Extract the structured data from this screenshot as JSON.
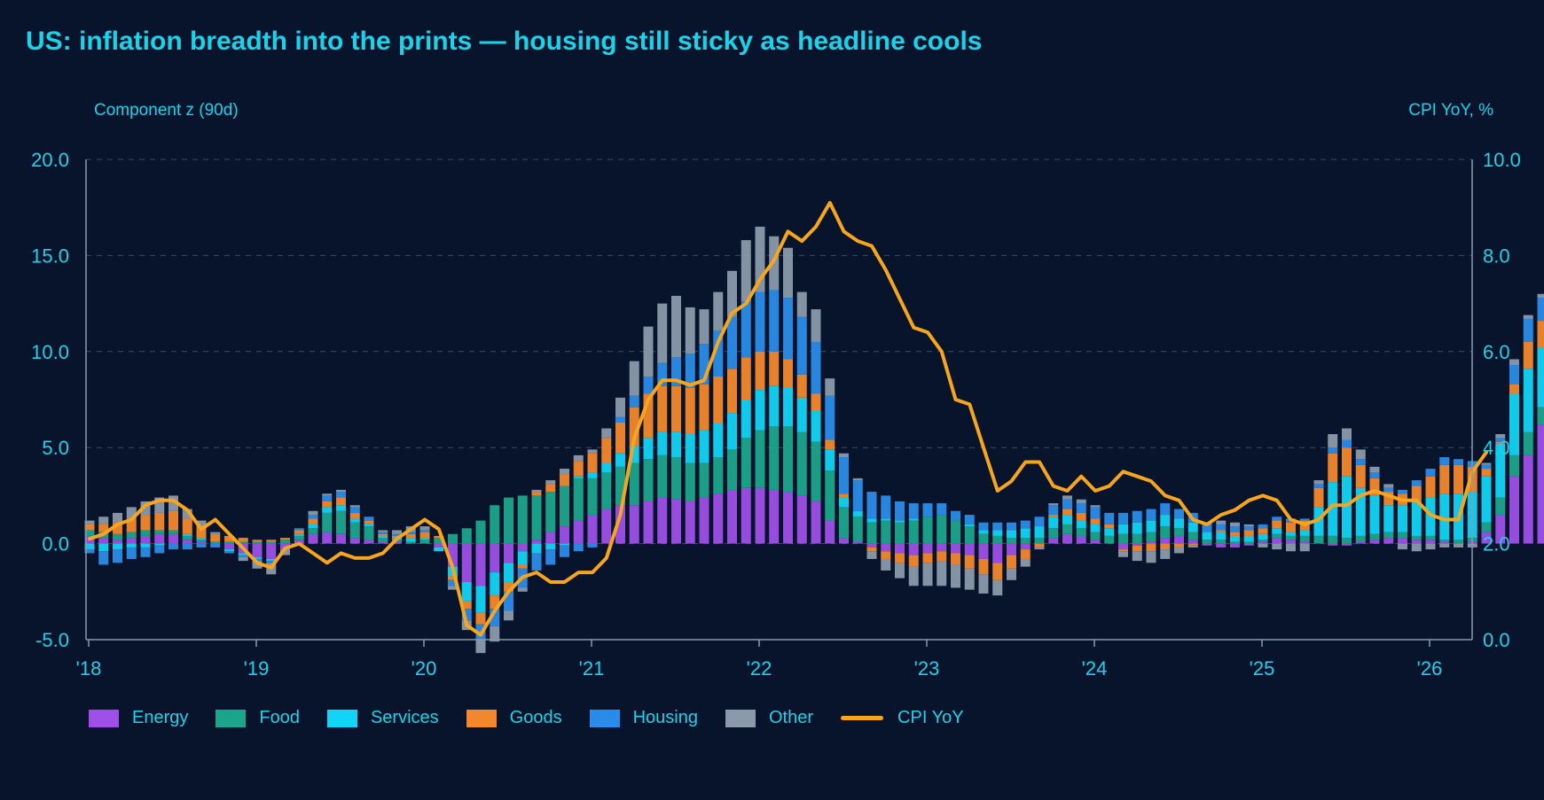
{
  "chart_data": {
    "type": "bar",
    "title": "US: inflation breadth into the prints — housing still sticky as headline cools",
    "ylabel": "Component z (90d)",
    "y2label": "CPI YoY, %",
    "ylim": [
      -5,
      20
    ],
    "y2lim": [
      0,
      10
    ],
    "yticks": [
      "20.0",
      "15.0",
      "10.0",
      "5.0",
      "0.0",
      "-5.0"
    ],
    "y2ticks": [
      "10.0",
      "8.0",
      "6.0",
      "4.0",
      "2.0",
      "0.0"
    ],
    "xticks": [
      "'18",
      "'19",
      "'20",
      "'21",
      "'22",
      "'23",
      "'24",
      "'25",
      "'26"
    ],
    "x_start": "2018-01",
    "x_step": "1 month",
    "stacked": true,
    "grid": true,
    "legend_position": "bottom-left",
    "series": [
      {
        "name": "Energy",
        "color": "#9e4fe6",
        "values": [
          0.4,
          0.3,
          0.2,
          0.3,
          0.4,
          0.5,
          0.5,
          0.2,
          0.1,
          0.0,
          -0.3,
          -0.5,
          -0.7,
          -0.8,
          -0.3,
          0.2,
          0.5,
          0.6,
          0.5,
          0.3,
          0.2,
          0.1,
          0.1,
          0.0,
          0.0,
          -0.2,
          -1.2,
          -2.0,
          -2.2,
          -1.5,
          -1.0,
          -0.4,
          0.2,
          0.6,
          0.9,
          1.2,
          1.5,
          1.8,
          2.0,
          2.0,
          2.2,
          2.4,
          2.3,
          2.2,
          2.4,
          2.6,
          2.8,
          2.9,
          2.9,
          2.8,
          2.7,
          2.5,
          2.2,
          1.2,
          0.3,
          0.1,
          -0.2,
          -0.4,
          -0.5,
          -0.6,
          -0.5,
          -0.4,
          -0.5,
          -0.6,
          -0.8,
          -1.0,
          -0.6,
          -0.3,
          0.0,
          0.3,
          0.5,
          0.4,
          0.2,
          0.0,
          -0.3,
          -0.1,
          0.1,
          0.3,
          0.4,
          0.2,
          -0.1,
          -0.2,
          -0.2,
          -0.1,
          0.1,
          0.3,
          0.2,
          0.1,
          0.0,
          -0.1,
          -0.1,
          0.1,
          0.2,
          0.3,
          0.3,
          0.2,
          0.2,
          0.1,
          0.0,
          0.1,
          0.6,
          1.5,
          3.5,
          4.6,
          6.2
        ]
      },
      {
        "name": "Food",
        "color": "#1ba58c",
        "values": [
          0.3,
          0.3,
          0.3,
          0.3,
          0.3,
          0.2,
          0.2,
          0.2,
          0.1,
          0.1,
          0.1,
          0.1,
          0.1,
          0.1,
          0.2,
          0.2,
          0.3,
          1.0,
          1.2,
          0.8,
          0.7,
          0.2,
          0.1,
          0.1,
          0.2,
          0.3,
          0.5,
          0.8,
          1.2,
          2.0,
          2.4,
          2.5,
          2.3,
          2.1,
          2.1,
          2.2,
          1.9,
          1.9,
          2.0,
          2.2,
          2.2,
          2.2,
          2.2,
          2.0,
          1.8,
          1.9,
          2.1,
          2.6,
          3.0,
          3.3,
          3.4,
          3.3,
          3.1,
          2.6,
          1.6,
          1.3,
          1.1,
          1.2,
          1.1,
          1.2,
          1.4,
          1.5,
          1.2,
          0.9,
          0.5,
          0.4,
          0.3,
          0.3,
          0.3,
          0.5,
          0.5,
          0.4,
          0.4,
          0.4,
          0.5,
          0.5,
          0.5,
          0.6,
          0.4,
          0.4,
          0.2,
          0.2,
          0.1,
          0.1,
          0.1,
          0.2,
          0.2,
          0.3,
          0.4,
          0.4,
          0.3,
          0.3,
          0.3,
          0.3,
          0.3,
          0.2,
          0.2,
          0.1,
          0.2,
          0.2,
          0.5,
          0.9,
          1.1,
          1.2,
          0.9
        ]
      },
      {
        "name": "Services",
        "color": "#12d4f4",
        "values": [
          -0.3,
          -0.4,
          -0.3,
          -0.2,
          -0.2,
          -0.1,
          0.0,
          0.1,
          0.1,
          0.0,
          -0.1,
          -0.1,
          -0.1,
          -0.1,
          0.0,
          0.1,
          0.2,
          0.3,
          0.3,
          0.2,
          0.1,
          0.1,
          0.1,
          0.2,
          0.1,
          -0.2,
          -0.5,
          -1.0,
          -1.4,
          -1.2,
          -1.0,
          -0.7,
          -0.5,
          -0.3,
          -0.1,
          0.1,
          0.3,
          0.5,
          0.7,
          0.9,
          1.1,
          1.2,
          1.3,
          1.5,
          1.7,
          1.8,
          1.9,
          2.0,
          2.1,
          2.1,
          2.0,
          1.8,
          1.6,
          1.1,
          0.5,
          0.3,
          0.2,
          0.1,
          0.1,
          0.1,
          0.0,
          0.0,
          0.0,
          0.1,
          0.2,
          0.3,
          0.4,
          0.5,
          0.6,
          0.6,
          0.5,
          0.4,
          0.4,
          0.4,
          0.5,
          0.6,
          0.6,
          0.6,
          0.5,
          0.5,
          0.4,
          0.4,
          0.3,
          0.3,
          0.3,
          0.3,
          0.2,
          0.3,
          1.5,
          2.8,
          3.2,
          2.5,
          2.0,
          1.4,
          1.4,
          1.8,
          2.0,
          2.4,
          2.4,
          2.4,
          2.4,
          2.8,
          3.2,
          3.3,
          3.1
        ]
      },
      {
        "name": "Goods",
        "color": "#f4872c",
        "values": [
          0.3,
          0.4,
          0.6,
          0.7,
          0.8,
          0.9,
          1.0,
          0.8,
          0.6,
          0.4,
          0.3,
          0.2,
          0.1,
          0.1,
          0.1,
          0.2,
          0.3,
          0.3,
          0.4,
          0.3,
          0.2,
          0.1,
          0.1,
          0.2,
          0.3,
          0.1,
          -0.2,
          -0.4,
          -0.6,
          -0.7,
          -0.5,
          -0.2,
          0.2,
          0.4,
          0.6,
          0.8,
          1.0,
          1.3,
          1.6,
          2.0,
          2.3,
          2.4,
          2.4,
          2.4,
          2.4,
          2.4,
          2.3,
          2.2,
          2.0,
          1.8,
          1.5,
          1.2,
          0.9,
          0.5,
          0.2,
          0.0,
          -0.2,
          -0.4,
          -0.5,
          -0.6,
          -0.5,
          -0.5,
          -0.6,
          -0.7,
          -0.8,
          -0.9,
          -0.7,
          -0.5,
          -0.2,
          0.1,
          0.3,
          0.4,
          0.3,
          0.2,
          -0.1,
          -0.3,
          -0.4,
          -0.3,
          -0.2,
          -0.1,
          0.0,
          0.1,
          0.2,
          0.3,
          0.3,
          0.4,
          0.5,
          0.5,
          1.0,
          1.5,
          1.5,
          1.2,
          0.9,
          0.7,
          0.6,
          0.8,
          1.1,
          1.5,
          1.5,
          1.3,
          0.4,
          0.1,
          0.5,
          1.4,
          1.4
        ]
      },
      {
        "name": "Housing",
        "color": "#2a8ce8",
        "values": [
          -0.2,
          -0.7,
          -0.7,
          -0.6,
          -0.5,
          -0.4,
          -0.3,
          -0.3,
          -0.2,
          -0.2,
          -0.1,
          -0.1,
          -0.1,
          -0.1,
          0.0,
          0.1,
          0.2,
          0.3,
          0.3,
          0.3,
          0.2,
          0.1,
          0.1,
          0.1,
          0.1,
          0.0,
          -0.3,
          -0.6,
          -0.8,
          -0.9,
          -1.0,
          -1.0,
          -0.9,
          -0.8,
          -0.6,
          -0.4,
          -0.2,
          0.0,
          0.3,
          0.6,
          0.9,
          1.2,
          1.5,
          1.8,
          2.1,
          2.4,
          2.7,
          2.9,
          3.1,
          3.2,
          3.2,
          3.0,
          2.7,
          2.3,
          1.9,
          1.6,
          1.4,
          1.2,
          1.0,
          0.8,
          0.7,
          0.6,
          0.5,
          0.5,
          0.4,
          0.4,
          0.4,
          0.4,
          0.5,
          0.5,
          0.5,
          0.5,
          0.6,
          0.6,
          0.6,
          0.6,
          0.6,
          0.6,
          0.5,
          0.5,
          0.4,
          0.3,
          0.3,
          0.2,
          0.2,
          0.2,
          0.2,
          0.1,
          0.2,
          0.3,
          0.4,
          0.3,
          0.3,
          0.2,
          0.2,
          0.3,
          0.4,
          0.4,
          0.3,
          0.3,
          0.2,
          0.2,
          1.0,
          1.2,
          1.2
        ]
      },
      {
        "name": "Other",
        "color": "#8a9aab",
        "values": [
          0.2,
          0.4,
          0.5,
          0.6,
          0.7,
          0.8,
          0.8,
          0.5,
          0.3,
          0.1,
          0.0,
          -0.2,
          -0.4,
          -0.6,
          -0.3,
          0.0,
          0.2,
          0.1,
          0.1,
          0.1,
          0.0,
          0.1,
          0.2,
          0.3,
          0.2,
          0.0,
          -0.2,
          -0.5,
          -0.7,
          -0.8,
          -0.5,
          -0.2,
          0.1,
          0.2,
          0.3,
          0.3,
          0.2,
          0.5,
          1.0,
          1.8,
          2.6,
          3.1,
          3.2,
          2.4,
          1.8,
          2.0,
          2.4,
          3.2,
          3.4,
          2.8,
          2.6,
          1.3,
          1.7,
          0.9,
          0.2,
          0.1,
          -0.4,
          -0.6,
          -0.8,
          -1.0,
          -1.2,
          -1.3,
          -1.2,
          -1.1,
          -1.0,
          -0.8,
          -0.6,
          -0.4,
          -0.1,
          0.1,
          0.2,
          0.2,
          0.1,
          0.0,
          -0.3,
          -0.5,
          -0.6,
          -0.5,
          -0.3,
          -0.1,
          0.1,
          0.2,
          0.2,
          0.1,
          -0.2,
          -0.3,
          -0.4,
          -0.4,
          0.2,
          0.7,
          0.6,
          0.5,
          0.3,
          0.2,
          -0.3,
          -0.4,
          -0.3,
          -0.2,
          -0.2,
          -0.2,
          0.1,
          0.2,
          0.3,
          0.2,
          0.2
        ]
      },
      {
        "name": "CPI YoY",
        "color": "#f7a51c",
        "type": "line",
        "axis": "right",
        "values": [
          2.1,
          2.2,
          2.4,
          2.5,
          2.8,
          2.9,
          2.9,
          2.7,
          2.3,
          2.5,
          2.2,
          1.9,
          1.6,
          1.5,
          1.9,
          2.0,
          1.8,
          1.6,
          1.8,
          1.7,
          1.7,
          1.8,
          2.1,
          2.3,
          2.5,
          2.3,
          1.5,
          0.3,
          0.1,
          0.6,
          1.0,
          1.3,
          1.4,
          1.2,
          1.2,
          1.4,
          1.4,
          1.7,
          2.6,
          4.2,
          5.0,
          5.4,
          5.4,
          5.3,
          5.4,
          6.2,
          6.8,
          7.0,
          7.5,
          7.9,
          8.5,
          8.3,
          8.6,
          9.1,
          8.5,
          8.3,
          8.2,
          7.7,
          7.1,
          6.5,
          6.4,
          6.0,
          5.0,
          4.9,
          4.0,
          3.1,
          3.3,
          3.7,
          3.7,
          3.2,
          3.1,
          3.4,
          3.1,
          3.2,
          3.5,
          3.4,
          3.3,
          3.0,
          2.9,
          2.5,
          2.4,
          2.6,
          2.7,
          2.9,
          3.0,
          2.9,
          2.5,
          2.4,
          2.5,
          2.8,
          2.8,
          3.0,
          3.1,
          3.0,
          2.9,
          2.9,
          2.6,
          2.5,
          2.5,
          3.5,
          3.9
        ]
      }
    ]
  }
}
